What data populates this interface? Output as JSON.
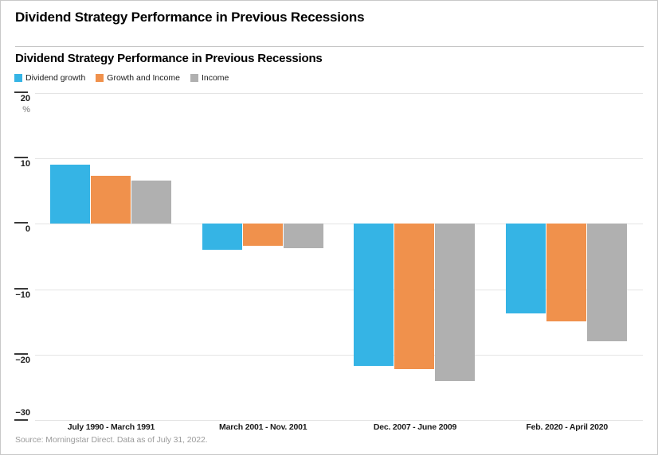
{
  "page": {
    "header_title": "Dividend Strategy Performance in Previous Recessions",
    "source": "Source: Morningstar Direct. Data as of July 31, 2022."
  },
  "chart": {
    "title": "Dividend Strategy Performance in Previous Recessions",
    "unit_label": "%"
  },
  "colors": {
    "dividend_growth": "#35B4E5",
    "growth_and_income": "#F0914C",
    "income": "#B0B0B0",
    "gridline": "#e4e4e4",
    "tick": "#3a3a3a"
  },
  "chart_data": {
    "type": "bar",
    "title": "Dividend Strategy Performance in Previous Recessions",
    "categories": [
      "July 1990 - March 1991",
      "March 2001 - Nov. 2001",
      "Dec. 2007 - June 2009",
      "Feb. 2020 - April 2020"
    ],
    "series": [
      {
        "name": "Dividend growth",
        "color": "#35B4E5",
        "values": [
          9.0,
          -4.0,
          -21.7,
          -13.7
        ]
      },
      {
        "name": "Growth and Income",
        "color": "#F0914C",
        "values": [
          7.3,
          -3.4,
          -22.2,
          -14.9
        ]
      },
      {
        "name": "Income",
        "color": "#B0B0B0",
        "values": [
          6.6,
          -3.7,
          -24.0,
          -18.0
        ]
      }
    ],
    "xlabel": "",
    "ylabel": "%",
    "ylim": [
      -30,
      20
    ],
    "yticks": [
      20,
      10,
      0,
      -10,
      -20,
      -30
    ],
    "grid": true,
    "legend_position": "top-left",
    "bar_unit": "percent return"
  }
}
